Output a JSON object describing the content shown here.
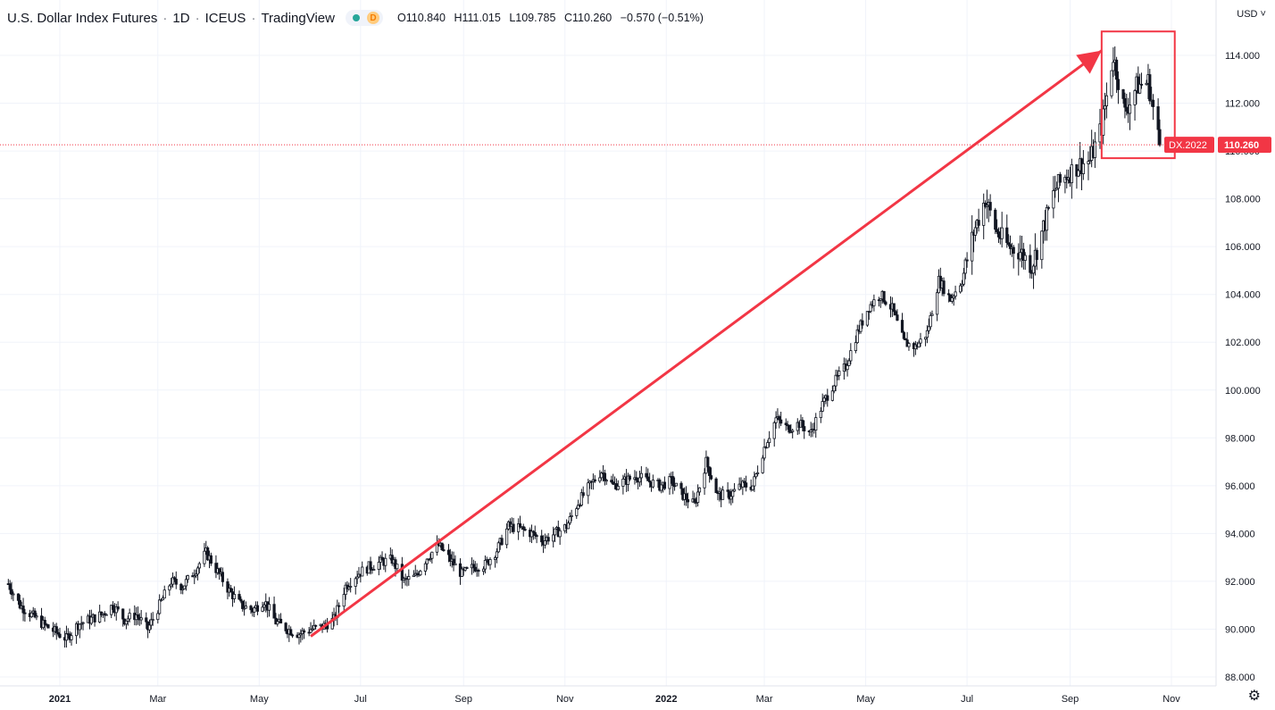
{
  "legend": {
    "title": "U.S. Dollar Index Futures",
    "interval": "1D",
    "exchange": "ICEUS",
    "source": "TradingView",
    "badge_letter": "D",
    "open_label": "O",
    "open": "110.840",
    "high_label": "H",
    "high": "111.015",
    "low_label": "L",
    "low": "109.785",
    "close_label": "C",
    "close": "110.260",
    "change": "−0.570 (−0.51%)"
  },
  "currency_selector": "USD ˅",
  "price_tag": {
    "symbol": "DX.2022",
    "value": "110.260"
  },
  "colors": {
    "up": "#26a69a",
    "down": "#ef5350",
    "candle": "#131722",
    "annotation": "#f23645",
    "grid": "#f0f3fa"
  },
  "icons": {
    "settings": "gear-icon"
  },
  "chart_data": {
    "type": "candlestick",
    "title": "U.S. Dollar Index Futures",
    "ylim": [
      87.5,
      115.5
    ],
    "y_ticks": [
      "88.000",
      "90.000",
      "92.000",
      "94.000",
      "96.000",
      "98.000",
      "100.000",
      "102.000",
      "104.000",
      "106.000",
      "108.000",
      "110.000",
      "112.000",
      "114.000"
    ],
    "x_ticks": [
      {
        "label": "2021",
        "date": "2021-01-01",
        "bold": true
      },
      {
        "label": "Mar",
        "date": "2021-03-01"
      },
      {
        "label": "May",
        "date": "2021-05-01"
      },
      {
        "label": "Jul",
        "date": "2021-07-01"
      },
      {
        "label": "Sep",
        "date": "2021-09-01"
      },
      {
        "label": "Nov",
        "date": "2021-11-01"
      },
      {
        "label": "2022",
        "date": "2022-01-01",
        "bold": true
      },
      {
        "label": "Mar",
        "date": "2022-03-01"
      },
      {
        "label": "May",
        "date": "2022-05-01"
      },
      {
        "label": "Jul",
        "date": "2022-07-01"
      },
      {
        "label": "Sep",
        "date": "2022-09-01"
      },
      {
        "label": "Nov",
        "date": "2022-11-01"
      }
    ],
    "last_price": 110.26,
    "closes": [
      [
        "2020-12-01",
        91.9
      ],
      [
        "2020-12-08",
        91.0
      ],
      [
        "2020-12-15",
        90.6
      ],
      [
        "2020-12-22",
        90.2
      ],
      [
        "2020-12-29",
        89.9
      ],
      [
        "2021-01-05",
        89.6
      ],
      [
        "2021-01-12",
        90.2
      ],
      [
        "2021-01-19",
        90.4
      ],
      [
        "2021-01-26",
        90.6
      ],
      [
        "2021-02-02",
        91.0
      ],
      [
        "2021-02-09",
        90.4
      ],
      [
        "2021-02-16",
        90.6
      ],
      [
        "2021-02-23",
        90.0
      ],
      [
        "2021-03-02",
        91.0
      ],
      [
        "2021-03-09",
        92.0
      ],
      [
        "2021-03-16",
        91.8
      ],
      [
        "2021-03-23",
        92.4
      ],
      [
        "2021-03-30",
        93.2
      ],
      [
        "2021-04-06",
        92.4
      ],
      [
        "2021-04-13",
        91.6
      ],
      [
        "2021-04-20",
        91.0
      ],
      [
        "2021-04-27",
        90.8
      ],
      [
        "2021-05-04",
        91.2
      ],
      [
        "2021-05-11",
        90.3
      ],
      [
        "2021-05-18",
        90.0
      ],
      [
        "2021-05-25",
        89.8
      ],
      [
        "2021-06-01",
        90.0
      ],
      [
        "2021-06-08",
        90.1
      ],
      [
        "2021-06-15",
        90.4
      ],
      [
        "2021-06-22",
        91.8
      ],
      [
        "2021-06-29",
        92.3
      ],
      [
        "2021-07-06",
        92.6
      ],
      [
        "2021-07-13",
        92.8
      ],
      [
        "2021-07-20",
        92.9
      ],
      [
        "2021-07-27",
        92.0
      ],
      [
        "2021-08-03",
        92.2
      ],
      [
        "2021-08-10",
        93.0
      ],
      [
        "2021-08-17",
        93.5
      ],
      [
        "2021-08-24",
        92.9
      ],
      [
        "2021-08-31",
        92.3
      ],
      [
        "2021-09-07",
        92.6
      ],
      [
        "2021-09-14",
        92.7
      ],
      [
        "2021-09-21",
        93.3
      ],
      [
        "2021-09-28",
        94.3
      ],
      [
        "2021-10-05",
        94.2
      ],
      [
        "2021-10-12",
        94.0
      ],
      [
        "2021-10-19",
        93.7
      ],
      [
        "2021-10-26",
        94.0
      ],
      [
        "2021-11-02",
        94.3
      ],
      [
        "2021-11-09",
        95.3
      ],
      [
        "2021-11-16",
        96.0
      ],
      [
        "2021-11-23",
        96.6
      ],
      [
        "2021-11-30",
        96.0
      ],
      [
        "2021-12-07",
        96.2
      ],
      [
        "2021-12-14",
        96.4
      ],
      [
        "2021-12-21",
        96.2
      ],
      [
        "2021-12-28",
        96.0
      ],
      [
        "2022-01-04",
        96.2
      ],
      [
        "2022-01-11",
        95.6
      ],
      [
        "2022-01-18",
        95.2
      ],
      [
        "2022-01-25",
        97.0
      ],
      [
        "2022-02-01",
        95.6
      ],
      [
        "2022-02-08",
        95.6
      ],
      [
        "2022-02-15",
        96.0
      ],
      [
        "2022-02-22",
        96.0
      ],
      [
        "2022-03-01",
        97.6
      ],
      [
        "2022-03-08",
        98.8
      ],
      [
        "2022-03-15",
        98.4
      ],
      [
        "2022-03-22",
        98.6
      ],
      [
        "2022-03-29",
        98.2
      ],
      [
        "2022-04-05",
        99.4
      ],
      [
        "2022-04-12",
        100.3
      ],
      [
        "2022-04-19",
        101.0
      ],
      [
        "2022-04-26",
        102.4
      ],
      [
        "2022-05-03",
        103.5
      ],
      [
        "2022-05-10",
        104.0
      ],
      [
        "2022-05-17",
        103.4
      ],
      [
        "2022-05-24",
        102.0
      ],
      [
        "2022-05-31",
        101.8
      ],
      [
        "2022-06-07",
        102.4
      ],
      [
        "2022-06-14",
        104.6
      ],
      [
        "2022-06-21",
        103.8
      ],
      [
        "2022-06-28",
        104.6
      ],
      [
        "2022-07-05",
        106.6
      ],
      [
        "2022-07-12",
        108.0
      ],
      [
        "2022-07-19",
        106.6
      ],
      [
        "2022-07-26",
        106.0
      ],
      [
        "2022-08-02",
        105.8
      ],
      [
        "2022-08-09",
        105.2
      ],
      [
        "2022-08-16",
        106.8
      ],
      [
        "2022-08-23",
        108.4
      ],
      [
        "2022-08-30",
        109.0
      ],
      [
        "2022-09-06",
        109.4
      ],
      [
        "2022-09-13",
        109.6
      ],
      [
        "2022-09-20",
        111.0
      ],
      [
        "2022-09-27",
        114.0
      ],
      [
        "2022-10-04",
        111.6
      ],
      [
        "2022-10-11",
        112.7
      ],
      [
        "2022-10-18",
        112.9
      ],
      [
        "2022-10-25",
        110.26
      ]
    ],
    "annotations": [
      {
        "type": "arrow",
        "from": {
          "date": "2021-06-01",
          "price": 89.7
        },
        "to": {
          "date": "2022-09-20",
          "price": 114.2
        }
      },
      {
        "type": "rectangle",
        "from": {
          "date": "2022-09-20",
          "price": 115.0
        },
        "to": {
          "date": "2022-11-03",
          "price": 109.7
        }
      }
    ]
  }
}
